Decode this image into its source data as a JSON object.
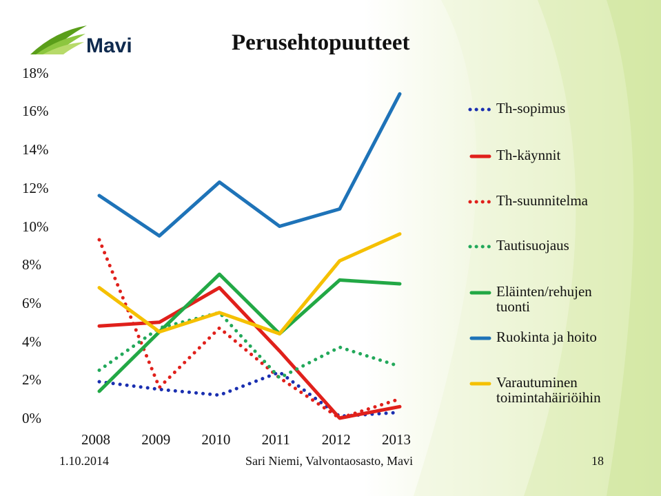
{
  "title": "Perusehtopuutteet",
  "logo": {
    "text": "Mavi",
    "icon": "mavi-leaf-logo"
  },
  "footer": {
    "date": "1.10.2014",
    "author": "Sari Niemi, Valvontaosasto, Mavi",
    "page": "18"
  },
  "colors": {
    "blue_dotted": "#1a2fb0",
    "red": "#e0201b",
    "red_dotted": "#e0201b",
    "green_dotted": "#22a85a",
    "green": "#22a845",
    "blue": "#1e73b8",
    "yellow": "#f5c000"
  },
  "chart_data": {
    "type": "line",
    "x": [
      "2008",
      "2009",
      "2010",
      "2011",
      "2012",
      "2013"
    ],
    "y_ticks": [
      "0%",
      "2%",
      "4%",
      "6%",
      "8%",
      "10%",
      "12%",
      "14%",
      "16%",
      "18%"
    ],
    "ylim": [
      0,
      18
    ],
    "grid": false,
    "legend_position": "right",
    "series": [
      {
        "name": "Th-sopimus",
        "values": [
          1.9,
          1.5,
          1.2,
          2.4,
          0.1,
          0.3
        ],
        "style": "dotted",
        "color": "#1a2fb0"
      },
      {
        "name": "Th-käynnit",
        "values": [
          4.8,
          5.0,
          6.8,
          3.5,
          0.0,
          0.6
        ],
        "style": "solid",
        "color": "#e0201b"
      },
      {
        "name": "Th-suunnitelma",
        "values": [
          9.3,
          1.6,
          4.7,
          2.1,
          0.0,
          1.0
        ],
        "style": "dotted",
        "color": "#e0201b"
      },
      {
        "name": "Tautisuojaus",
        "values": [
          2.5,
          4.7,
          5.5,
          2.1,
          3.7,
          2.7
        ],
        "style": "dotted",
        "color": "#22a85a"
      },
      {
        "name": "Eläinten/rehujen tuonti",
        "values": [
          1.4,
          4.5,
          7.5,
          4.4,
          7.2,
          7.0
        ],
        "style": "solid",
        "color": "#22a845"
      },
      {
        "name": "Ruokinta ja hoito",
        "values": [
          11.6,
          9.5,
          12.3,
          10.0,
          10.9,
          16.9
        ],
        "style": "solid",
        "color": "#1e73b8"
      },
      {
        "name": "Varautuminen toimintahäiriöihin",
        "values": [
          6.8,
          4.5,
          5.5,
          4.4,
          8.2,
          9.6
        ],
        "style": "solid",
        "color": "#f5c000"
      }
    ],
    "legend": [
      [
        "Th-sopimus"
      ],
      [
        "Th-käynnit"
      ],
      [
        "Th-suunnitelma"
      ],
      [
        "Tautisuojaus"
      ],
      [
        "Eläinten/rehujen",
        "tuonti"
      ],
      [
        "Ruokinta ja hoito"
      ],
      [
        "Varautuminen",
        "toimintahäiriöihin"
      ]
    ]
  }
}
